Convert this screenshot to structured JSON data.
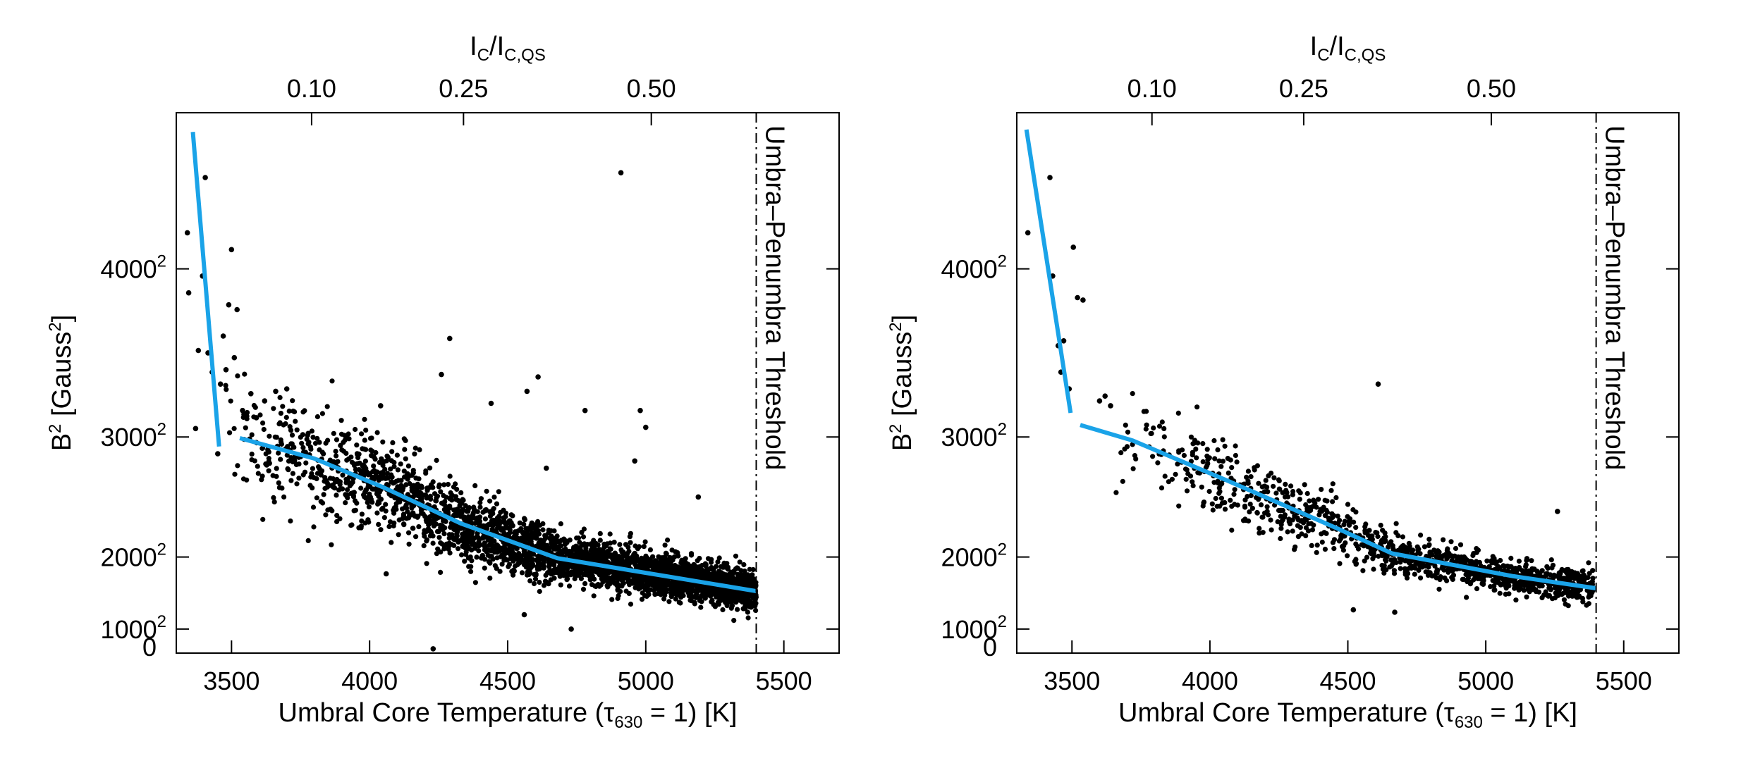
{
  "chart_data": [
    {
      "type": "scatter",
      "panel": "left",
      "xlabel": "Umbral Core Temperature",
      "xlabel_suffix": "[K]",
      "ylabel": "B",
      "ylabel_units": "[Gauss",
      "top_xlabel": "I",
      "top_xlabel_sub1": "C",
      "top_xlabel_slash": "/I",
      "top_xlabel_sub2": "C,QS",
      "xlim": [
        3300,
        5700
      ],
      "ylim": [
        0,
        22500000
      ],
      "xticks": [
        3500,
        4000,
        4500,
        5000,
        5500
      ],
      "yticks": [
        {
          "value": 0,
          "label": "0",
          "sup": ""
        },
        {
          "value": 1000000,
          "label": "1000",
          "sup": "2"
        },
        {
          "value": 4000000,
          "label": "2000",
          "sup": "2"
        },
        {
          "value": 9000000,
          "label": "3000",
          "sup": "2"
        },
        {
          "value": 16000000,
          "label": "4000",
          "sup": "2"
        }
      ],
      "top_ticks": [
        {
          "label": "0.10",
          "x": 3790
        },
        {
          "label": "0.25",
          "x": 4340
        },
        {
          "label": "0.50",
          "x": 5020
        }
      ],
      "threshold": {
        "x": 5400,
        "label": "Umbra–Penumbra Threshold"
      },
      "fit_segments": [
        {
          "x": [
            3360,
            3455
          ],
          "y": [
            21700000,
            8600000
          ]
        },
        {
          "x": [
            3530,
            3800,
            4050,
            4330,
            4680,
            5100,
            5400
          ],
          "y": [
            8950000,
            8100000,
            6900000,
            5400000,
            3950000,
            3150000,
            2580000
          ]
        }
      ],
      "n_points": 3200,
      "cloud_x": [
        3450,
        5400
      ],
      "outliers": [
        {
          "x": 3340,
          "y": 17500000
        },
        {
          "x": 3345,
          "y": 15000000
        },
        {
          "x": 3370,
          "y": 9350000
        },
        {
          "x": 3380,
          "y": 12600000
        },
        {
          "x": 3395,
          "y": 15700000
        },
        {
          "x": 3405,
          "y": 19800000
        },
        {
          "x": 3415,
          "y": 12500000
        },
        {
          "x": 3430,
          "y": 11700000
        },
        {
          "x": 3450,
          "y": 8300000
        },
        {
          "x": 3460,
          "y": 11200000
        },
        {
          "x": 3470,
          "y": 13200000
        },
        {
          "x": 3480,
          "y": 11800000
        },
        {
          "x": 3490,
          "y": 14500000
        },
        {
          "x": 3500,
          "y": 16800000
        },
        {
          "x": 3510,
          "y": 12300000
        },
        {
          "x": 3520,
          "y": 14300000
        },
        {
          "x": 3540,
          "y": 10100000
        },
        {
          "x": 3570,
          "y": 10800000
        },
        {
          "x": 3590,
          "y": 9800000
        },
        {
          "x": 3620,
          "y": 10500000
        },
        {
          "x": 3660,
          "y": 10900000
        },
        {
          "x": 3700,
          "y": 11000000
        },
        {
          "x": 4040,
          "y": 10300000
        },
        {
          "x": 4060,
          "y": 3300000
        },
        {
          "x": 4230,
          "y": 180000
        },
        {
          "x": 4260,
          "y": 11600000
        },
        {
          "x": 4290,
          "y": 13100000
        },
        {
          "x": 4440,
          "y": 10400000
        },
        {
          "x": 4570,
          "y": 10900000
        },
        {
          "x": 4610,
          "y": 11500000
        },
        {
          "x": 4640,
          "y": 7700000
        },
        {
          "x": 4780,
          "y": 10100000
        },
        {
          "x": 4910,
          "y": 20000000
        },
        {
          "x": 4960,
          "y": 8000000
        },
        {
          "x": 4980,
          "y": 10100000
        },
        {
          "x": 5000,
          "y": 9400000
        },
        {
          "x": 4560,
          "y": 1600000
        },
        {
          "x": 4730,
          "y": 1000000
        },
        {
          "x": 5190,
          "y": 6500000
        }
      ]
    },
    {
      "type": "scatter",
      "panel": "right",
      "xlabel": "Umbral Core Temperature",
      "xlabel_suffix": "[K]",
      "ylabel": "B",
      "ylabel_units": "[Gauss",
      "top_xlabel": "I",
      "top_xlabel_sub1": "C",
      "top_xlabel_slash": "/I",
      "top_xlabel_sub2": "C,QS",
      "xlim": [
        3300,
        5700
      ],
      "ylim": [
        0,
        22500000
      ],
      "xticks": [
        3500,
        4000,
        4500,
        5000,
        5500
      ],
      "yticks": [
        {
          "value": 0,
          "label": "0",
          "sup": ""
        },
        {
          "value": 1000000,
          "label": "1000",
          "sup": "2"
        },
        {
          "value": 4000000,
          "label": "2000",
          "sup": "2"
        },
        {
          "value": 9000000,
          "label": "3000",
          "sup": "2"
        },
        {
          "value": 16000000,
          "label": "4000",
          "sup": "2"
        }
      ],
      "top_ticks": [
        {
          "label": "0.10",
          "x": 3790
        },
        {
          "label": "0.25",
          "x": 4340
        },
        {
          "label": "0.50",
          "x": 5020
        }
      ],
      "threshold": {
        "x": 5400,
        "label": "Umbra–Penumbra Threshold"
      },
      "fit_segments": [
        {
          "x": [
            3335,
            3495
          ],
          "y": [
            21800000,
            10000000
          ]
        },
        {
          "x": [
            3530,
            3720,
            4060,
            4460,
            4660,
            5100,
            5400
          ],
          "y": [
            9500000,
            8850000,
            7200000,
            5200000,
            4150000,
            3200000,
            2700000
          ]
        }
      ],
      "n_points": 1150,
      "cloud_x": [
        3600,
        5390
      ],
      "outliers": [
        {
          "x": 3340,
          "y": 17500000
        },
        {
          "x": 3420,
          "y": 19800000
        },
        {
          "x": 3430,
          "y": 15700000
        },
        {
          "x": 3450,
          "y": 12800000
        },
        {
          "x": 3460,
          "y": 11700000
        },
        {
          "x": 3470,
          "y": 13000000
        },
        {
          "x": 3490,
          "y": 11000000
        },
        {
          "x": 3505,
          "y": 16900000
        },
        {
          "x": 3520,
          "y": 14800000
        },
        {
          "x": 3540,
          "y": 14700000
        },
        {
          "x": 3600,
          "y": 10500000
        },
        {
          "x": 3620,
          "y": 10700000
        },
        {
          "x": 3640,
          "y": 10300000
        },
        {
          "x": 4610,
          "y": 11200000
        },
        {
          "x": 4520,
          "y": 1800000
        },
        {
          "x": 4670,
          "y": 1700000
        },
        {
          "x": 5260,
          "y": 5900000
        }
      ]
    }
  ]
}
